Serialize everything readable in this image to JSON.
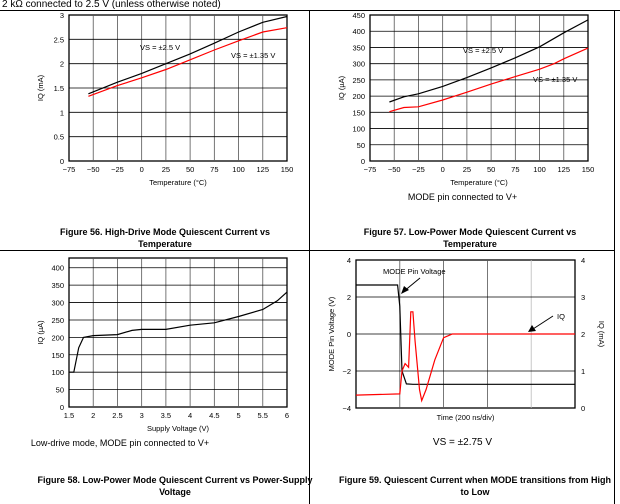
{
  "header": {
    "text": "2 kΩ connected to 2.5 V (unless otherwise noted)"
  },
  "figures": [
    {
      "caption": "Figure 56. High-Drive Mode Quiescent Current vs Temperature",
      "note": ""
    },
    {
      "caption": "Figure 57. Low-Power Mode Quiescent Current vs Temperature",
      "note": "MODE pin connected to V+"
    },
    {
      "caption": "Figure 58. Low-Power Mode Quiescent Current vs Power-Supply Voltage",
      "note": "Low-drive mode, MODE pin connected to V+"
    },
    {
      "caption": "Figure 59. Quiescent Current when MODE transitions from High to Low",
      "note": "VS = ±2.75 V"
    }
  ],
  "chart_data": [
    {
      "type": "line",
      "title": "Figure 56. High-Drive Mode Quiescent Current vs Temperature",
      "xlabel": "Temperature (°C)",
      "ylabel": "IQ (mA)",
      "xlim": [
        -75,
        150
      ],
      "ylim": [
        0,
        3
      ],
      "xticks": [
        "-75",
        "-50",
        "-25",
        "0",
        "25",
        "50",
        "75",
        "100",
        "125",
        "150"
      ],
      "yticks": [
        "0",
        "0.5",
        "1",
        "1.5",
        "2",
        "2.5",
        "3"
      ],
      "grid": true,
      "series": [
        {
          "name": "VS = ±2.5 V",
          "color": "#000000",
          "x": [
            -55,
            -25,
            0,
            25,
            50,
            75,
            100,
            125,
            150
          ],
          "y": [
            1.38,
            1.62,
            1.8,
            2.0,
            2.2,
            2.42,
            2.65,
            2.85,
            2.97
          ]
        },
        {
          "name": "VS = ±1.35 V",
          "color": "#ff0000",
          "x": [
            -55,
            -25,
            0,
            25,
            50,
            75,
            100,
            125,
            150
          ],
          "y": [
            1.33,
            1.55,
            1.71,
            1.88,
            2.08,
            2.28,
            2.47,
            2.65,
            2.74
          ]
        }
      ]
    },
    {
      "type": "line",
      "title": "Figure 57. Low-Power Mode Quiescent Current vs Temperature",
      "xlabel": "Temperature (°C)",
      "ylabel": "IQ (µA)",
      "xlim": [
        -75,
        150
      ],
      "ylim": [
        0,
        450
      ],
      "xticks": [
        "-75",
        "-50",
        "-25",
        "0",
        "25",
        "50",
        "75",
        "100",
        "125",
        "150"
      ],
      "yticks": [
        "0",
        "50",
        "100",
        "150",
        "200",
        "250",
        "300",
        "350",
        "400",
        "450"
      ],
      "grid": true,
      "series": [
        {
          "name": "VS = ±2.5 V",
          "color": "#000000",
          "x": [
            -55,
            -40,
            -25,
            0,
            25,
            50,
            75,
            100,
            125,
            150
          ],
          "y": [
            182,
            198,
            207,
            230,
            257,
            287,
            318,
            352,
            395,
            435
          ]
        },
        {
          "name": "VS = ±1.35 V",
          "color": "#ff0000",
          "x": [
            -55,
            -40,
            -25,
            0,
            25,
            50,
            75,
            100,
            115,
            125,
            150
          ],
          "y": [
            152,
            165,
            167,
            188,
            212,
            237,
            260,
            283,
            300,
            315,
            348
          ]
        }
      ]
    },
    {
      "type": "line",
      "title": "Figure 58. Low-Power Mode Quiescent Current vs Power-Supply Voltage",
      "xlabel": "Supply Voltage (V)",
      "ylabel": "IQ (µA)",
      "xlim": [
        1.5,
        6
      ],
      "ylim": [
        0,
        428
      ],
      "xticks": [
        "1.5",
        "2",
        "2.5",
        "3",
        "3.5",
        "4",
        "4.5",
        "5",
        "5.5",
        "6"
      ],
      "yticks": [
        "0",
        "50",
        "100",
        "150",
        "200",
        "250",
        "300",
        "350",
        "400"
      ],
      "grid": true,
      "series": [
        {
          "name": "IQ",
          "color": "#000000",
          "x": [
            1.5,
            1.6,
            1.7,
            1.8,
            2,
            2.5,
            2.8,
            3,
            3.5,
            4,
            4.5,
            5,
            5.5,
            5.8,
            6
          ],
          "y": [
            100,
            100,
            170,
            200,
            205,
            208,
            220,
            223,
            223,
            235,
            242,
            260,
            280,
            305,
            330
          ]
        }
      ]
    },
    {
      "type": "line",
      "title": "Figure 59. Quiescent Current when MODE transitions from High to Low",
      "xlabel": "Time (200 ns/div)",
      "ylabel": "MODE Pin Voltage (V)",
      "y2label": "IQ (mA)",
      "xlim": [
        0,
        5
      ],
      "ylim": [
        -4,
        4
      ],
      "y2lim": [
        0,
        4
      ],
      "yticks": [
        "-4",
        "-2",
        "0",
        "2",
        "4"
      ],
      "y2ticks": [
        "0",
        "1",
        "2",
        "3",
        "4"
      ],
      "grid": true,
      "series": [
        {
          "name": "MODE Pin Voltage",
          "axis": "left",
          "color": "#000000",
          "x": [
            0,
            0.95,
            1.0,
            1.05,
            1.15,
            1.3,
            5
          ],
          "y": [
            2.65,
            2.65,
            1.5,
            -2.0,
            -2.7,
            -2.72,
            -2.72
          ]
        },
        {
          "name": "IQ",
          "axis": "right",
          "color": "#ff0000",
          "x": [
            0,
            1.0,
            1.05,
            1.12,
            1.2,
            1.25,
            1.3,
            1.35,
            1.45,
            1.5,
            1.6,
            1.8,
            2.0,
            2.2,
            5
          ],
          "y": [
            0.35,
            0.38,
            1.0,
            1.2,
            1.1,
            2.6,
            2.6,
            1.8,
            0.5,
            0.2,
            0.5,
            1.3,
            1.9,
            2.0,
            2.0
          ]
        }
      ],
      "annotations": [
        "MODE Pin Voltage",
        "IQ"
      ]
    }
  ]
}
